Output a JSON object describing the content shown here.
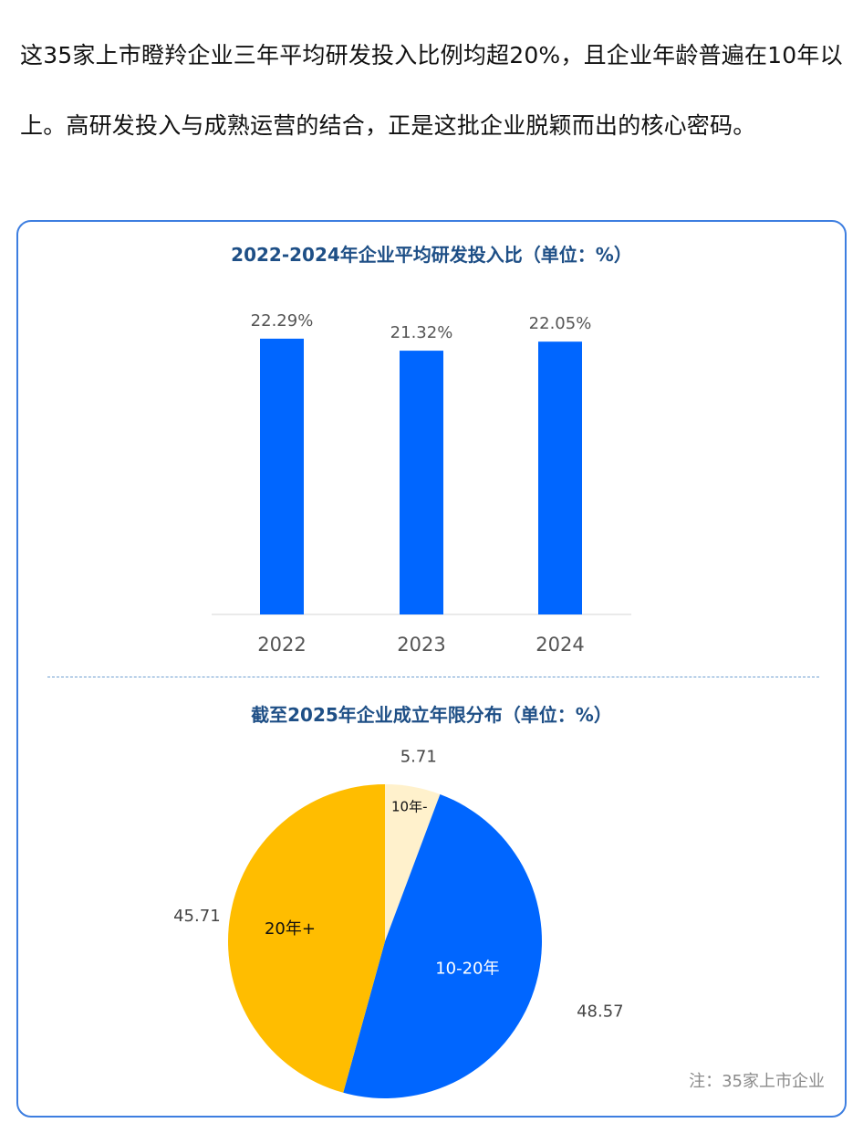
{
  "article": {
    "paragraph": "这35家上市瞪羚企业三年平均研发投入比例均超20%，且企业年龄普遍在10年以上。高研发投入与成熟运营的结合，正是这批企业脱颖而出的核心密码。"
  },
  "colors": {
    "bar": "#0066ff",
    "slice_under10": "#fff1cc",
    "slice_10to20": "#0066ff",
    "slice_over20": "#ffbd00",
    "title": "#1e4f86",
    "border": "#3d7ee0"
  },
  "chart_data": [
    {
      "type": "bar",
      "title": "2022-2024年企业平均研发投入比（单位：%）",
      "categories": [
        "2022",
        "2023",
        "2024"
      ],
      "values": [
        22.29,
        21.32,
        22.05
      ],
      "data_labels": [
        "22.29%",
        "21.32%",
        "22.05%"
      ],
      "ylim": [
        0,
        24.5
      ],
      "grid": false,
      "legend": "none"
    },
    {
      "type": "pie",
      "title": "截至2025年企业成立年限分布（单位：%）",
      "slices": [
        {
          "label": "10年-",
          "value": 5.71,
          "value_label": "5.71"
        },
        {
          "label": "10-20年",
          "value": 48.57,
          "value_label": "48.57"
        },
        {
          "label": "20年+",
          "value": 45.71,
          "value_label": "45.71"
        }
      ],
      "start": "top",
      "direction": "clockwise",
      "legend": "none"
    }
  ],
  "note": "注：35家上市企业"
}
